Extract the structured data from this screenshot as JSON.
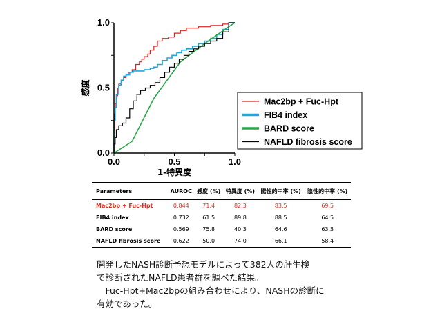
{
  "chart_data": {
    "type": "line",
    "xlabel": "1-特異度",
    "ylabel": "感度",
    "xlim": [
      0,
      1
    ],
    "ylim": [
      0,
      1
    ],
    "xticks": [
      "0.0",
      "0.5",
      "1.0"
    ],
    "yticks": [
      "0.0",
      "0.5",
      "1.0"
    ],
    "grid": false,
    "legend_placement": "right",
    "series": [
      {
        "name": "Mac2bp + Fuc-Hpt",
        "color": "#e0201b",
        "step": true,
        "x": [
          0,
          0.005,
          0.01,
          0.02,
          0.03,
          0.04,
          0.06,
          0.08,
          0.1,
          0.12,
          0.15,
          0.18,
          0.21,
          0.23,
          0.25,
          0.28,
          0.3,
          0.33,
          0.36,
          0.4,
          0.45,
          0.5,
          0.55,
          0.6,
          0.7,
          0.8,
          0.9,
          0.95,
          1.0
        ],
        "y": [
          0,
          0.18,
          0.3,
          0.38,
          0.44,
          0.5,
          0.53,
          0.56,
          0.58,
          0.6,
          0.62,
          0.64,
          0.68,
          0.7,
          0.72,
          0.74,
          0.76,
          0.79,
          0.82,
          0.86,
          0.88,
          0.89,
          0.92,
          0.94,
          0.96,
          0.97,
          0.98,
          0.99,
          1.0
        ]
      },
      {
        "name": "FIB4 index",
        "color": "#1ea7d8",
        "step": true,
        "x": [
          0,
          0.01,
          0.02,
          0.04,
          0.06,
          0.08,
          0.1,
          0.13,
          0.16,
          0.2,
          0.25,
          0.3,
          0.33,
          0.36,
          0.4,
          0.44,
          0.48,
          0.52,
          0.56,
          0.6,
          0.65,
          0.7,
          0.75,
          0.8,
          0.85,
          0.9,
          0.95,
          1.0
        ],
        "y": [
          0,
          0.25,
          0.35,
          0.45,
          0.52,
          0.56,
          0.59,
          0.6,
          0.62,
          0.63,
          0.63,
          0.64,
          0.65,
          0.66,
          0.68,
          0.71,
          0.73,
          0.75,
          0.77,
          0.79,
          0.8,
          0.82,
          0.84,
          0.86,
          0.88,
          0.91,
          0.95,
          1.0
        ]
      },
      {
        "name": "BARD score",
        "color": "#2aa64a",
        "step": false,
        "x": [
          0,
          0.15,
          0.33,
          0.55,
          0.75,
          0.95,
          1.0
        ],
        "y": [
          0,
          0.09,
          0.42,
          0.7,
          0.84,
          0.97,
          1.0
        ]
      },
      {
        "name": "NAFLD fibrosis score",
        "color": "#000000",
        "step": true,
        "x": [
          0,
          0.01,
          0.02,
          0.04,
          0.07,
          0.1,
          0.13,
          0.16,
          0.19,
          0.22,
          0.26,
          0.3,
          0.34,
          0.38,
          0.42,
          0.46,
          0.5,
          0.54,
          0.58,
          0.62,
          0.66,
          0.7,
          0.75,
          0.8,
          0.85,
          0.9,
          0.95,
          1.0
        ],
        "y": [
          0,
          0.07,
          0.12,
          0.18,
          0.21,
          0.23,
          0.27,
          0.34,
          0.4,
          0.45,
          0.48,
          0.5,
          0.52,
          0.54,
          0.58,
          0.62,
          0.66,
          0.69,
          0.72,
          0.75,
          0.78,
          0.8,
          0.82,
          0.84,
          0.86,
          0.88,
          0.93,
          1.0
        ]
      }
    ]
  },
  "table": {
    "headers": [
      "Parameters",
      "AUROC",
      "感度 (%)",
      "特異度 (%)",
      "陽性的中率 (%)",
      "陰性的中率 (%)"
    ],
    "rows": [
      [
        "Mac2bp + Fuc-Hpt",
        "0.844",
        "71.4",
        "82.3",
        "83.5",
        "69.5"
      ],
      [
        "FIB4 index",
        "0.732",
        "61.5",
        "89.8",
        "88.5",
        "64.5"
      ],
      [
        "BARD score",
        "0.569",
        "75.8",
        "40.3",
        "64.6",
        "63.3"
      ],
      [
        "NAFLD fibrosis score",
        "0.622",
        "50.0",
        "74.0",
        "66.1",
        "58.4"
      ]
    ]
  },
  "caption": {
    "line1": "開発したNASH診断予想モデルによって382人の肝生検",
    "line2": "で診断されたNAFLD患者群を調べた結果。",
    "line3": "　Fuc-Hpt+Mac2bpの組み合わせにより、NASHの診断に",
    "line4": "有効であった。"
  }
}
